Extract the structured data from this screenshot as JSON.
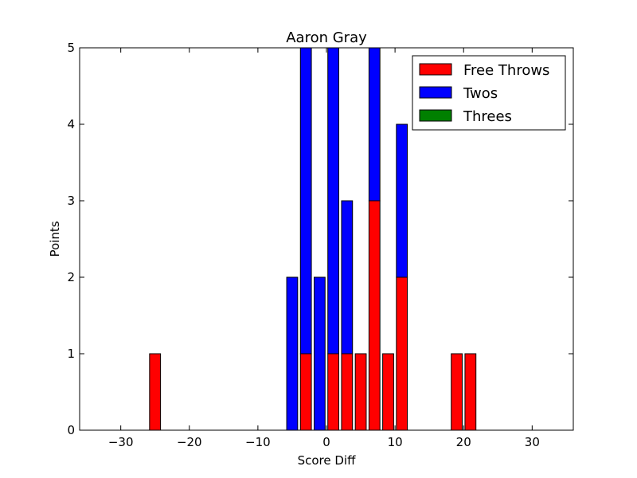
{
  "chart_data": {
    "type": "bar",
    "stacked": true,
    "title": "Aaron Gray",
    "xlabel": "Score Diff",
    "ylabel": "Points",
    "xlim": [
      -36,
      36
    ],
    "ylim": [
      0,
      5
    ],
    "xticks": [
      -30,
      -20,
      -10,
      0,
      10,
      20,
      30
    ],
    "yticks": [
      0,
      1,
      2,
      3,
      4,
      5
    ],
    "bar_width": 1.6,
    "x": [
      -25,
      -5,
      -3,
      -1,
      1,
      3,
      5,
      7,
      9,
      11,
      19,
      21
    ],
    "series": [
      {
        "name": "Free Throws",
        "color": "#ff0000",
        "values": [
          1,
          0,
          1,
          0,
          1,
          1,
          1,
          3,
          1,
          2,
          1,
          1
        ]
      },
      {
        "name": "Twos",
        "color": "#0000ff",
        "values": [
          0,
          2,
          4,
          2,
          4,
          2,
          0,
          2,
          0,
          2,
          0,
          0
        ]
      },
      {
        "name": "Threes",
        "color": "#008000",
        "values": [
          0,
          0,
          0,
          0,
          0,
          0,
          0,
          0,
          0,
          0,
          0,
          0
        ]
      }
    ],
    "legend_position": "top-right",
    "grid": false
  }
}
